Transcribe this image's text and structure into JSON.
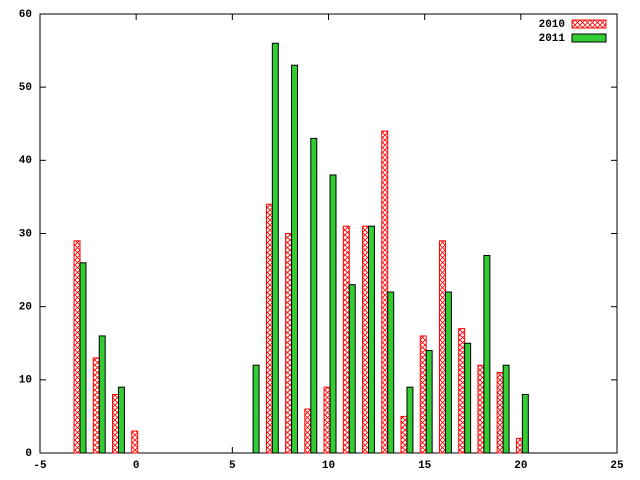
{
  "chart_data": {
    "type": "bar",
    "x": [
      -3,
      -2,
      -1,
      0,
      6,
      7,
      8,
      9,
      10,
      11,
      12,
      13,
      14,
      15,
      16,
      17,
      18,
      19,
      20
    ],
    "series": [
      {
        "name": "2010",
        "color": "#ff0000",
        "pattern": "crosshatch",
        "values": [
          29,
          13,
          8,
          3,
          null,
          34,
          30,
          6,
          9,
          31,
          31,
          44,
          5,
          16,
          29,
          17,
          12,
          11,
          2
        ]
      },
      {
        "name": "2011",
        "color": "#33cc33",
        "values": [
          26,
          16,
          9,
          null,
          12,
          56,
          53,
          43,
          38,
          23,
          31,
          22,
          9,
          14,
          22,
          15,
          27,
          12,
          8
        ]
      }
    ],
    "xlim": [
      -5,
      25
    ],
    "xticks": [
      -5,
      0,
      5,
      10,
      15,
      20,
      25
    ],
    "ylim": [
      0,
      60
    ],
    "yticks": [
      0,
      10,
      20,
      30,
      40,
      50,
      60
    ],
    "legend": "top-right"
  }
}
